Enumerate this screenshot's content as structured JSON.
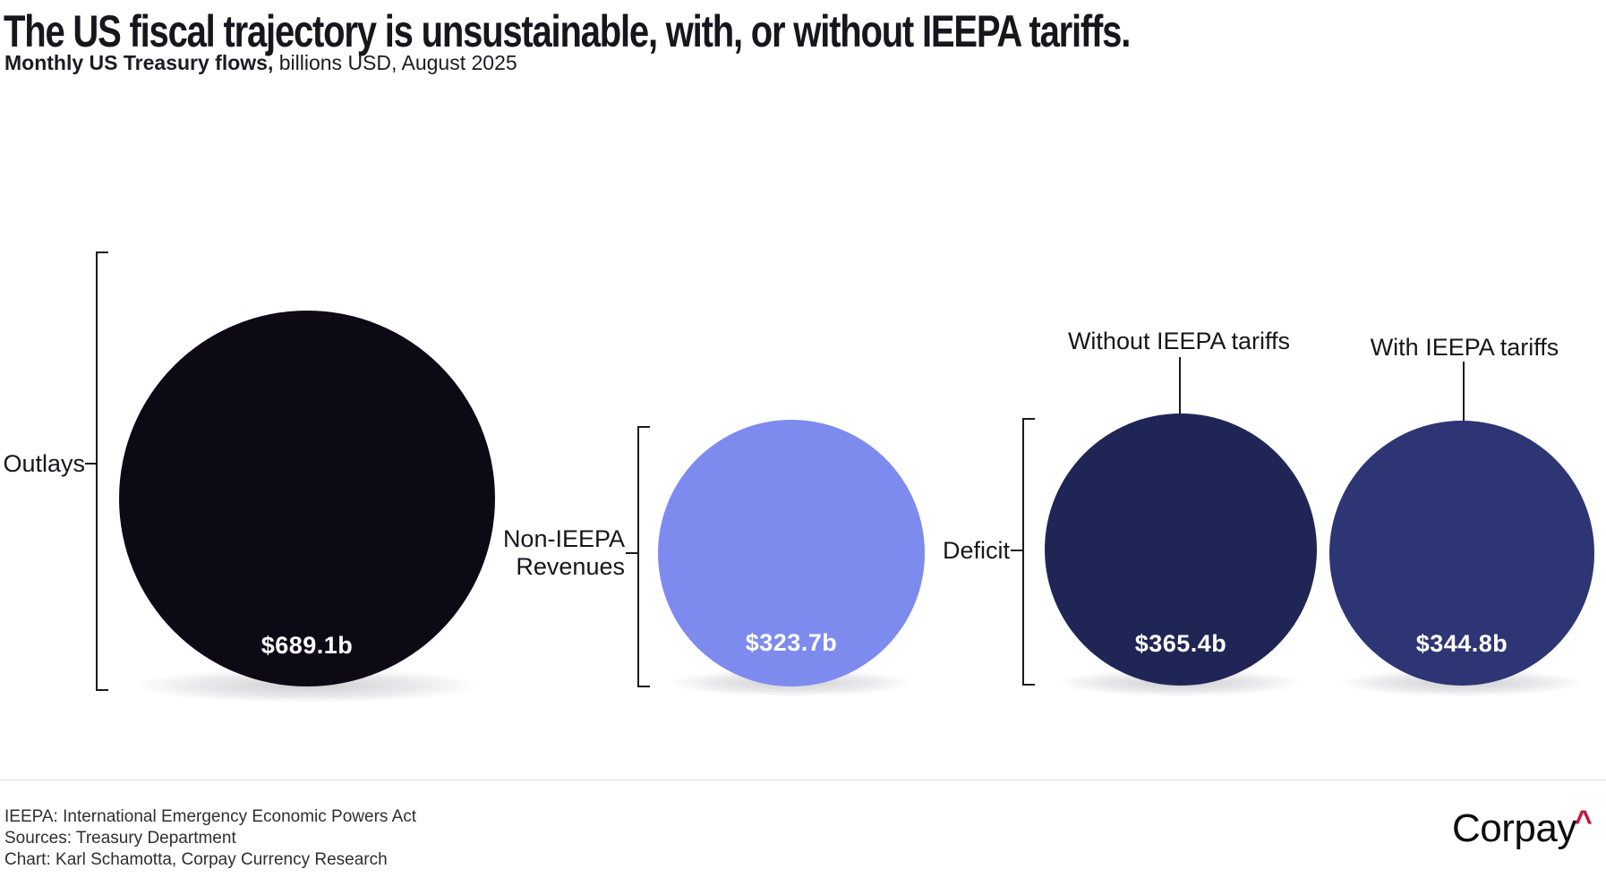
{
  "header": {
    "title": "The US fiscal trajectory is unsustainable, with, or without IEEPA tariffs.",
    "subtitle_bold": "Monthly US Treasury flows,",
    "subtitle_rest": " billions USD, August 2025"
  },
  "chart_data": {
    "type": "bubble",
    "title": "The US fiscal trajectory is unsustainable, with, or without IEEPA tariffs.",
    "subtitle": "Monthly US Treasury flows, billions USD, August 2025",
    "unit": "billions USD",
    "period": "August 2025",
    "area_proportional": true,
    "categories": [
      "Outlays",
      "Non-IEEPA Revenues",
      "Deficit without IEEPA tariffs",
      "Deficit with IEEPA tariffs"
    ],
    "values": [
      689.1,
      323.7,
      365.4,
      344.8
    ],
    "bubbles": [
      {
        "group": "Outlays",
        "label": "Outlays",
        "value": 689.1,
        "value_display": "$689.1b",
        "color": "#0d0a16"
      },
      {
        "group": "Non-IEEPA Revenues",
        "label": "Non-IEEPA Revenues",
        "value": 323.7,
        "value_display": "$323.7b",
        "color": "#7d8bef"
      },
      {
        "group": "Deficit",
        "label": "Without IEEPA tariffs",
        "value": 365.4,
        "value_display": "$365.4b",
        "color": "#1f2656"
      },
      {
        "group": "Deficit",
        "label": "With IEEPA tariffs",
        "value": 344.8,
        "value_display": "$344.8b",
        "color": "#2d3574"
      }
    ]
  },
  "labels": {
    "outlays": "Outlays",
    "revenues_line1": "Non-IEEPA",
    "revenues_line2": "Revenues",
    "deficit": "Deficit",
    "without_tariffs": "Without IEEPA tariffs",
    "with_tariffs": "With IEEPA tariffs"
  },
  "values": {
    "outlays": "$689.1b",
    "revenues": "$323.7b",
    "without_tariffs": "$365.4b",
    "with_tariffs": "$344.8b"
  },
  "footer": {
    "line1": "IEEPA: International Emergency Economic Powers Act",
    "line2": "Sources: Treasury Department",
    "line3": "Chart: Karl Schamotta, Corpay Currency Research",
    "logo_text": "Corpay",
    "logo_caret": "^"
  },
  "colors": {
    "outlays_circle": "#0d0a16",
    "revenues_circle": "#7d8bef",
    "deficit_without_circle": "#1f2656",
    "deficit_with_circle": "#2d3574",
    "line": "#1a1a1a",
    "logo_accent": "#c2163c",
    "divider": "#d9d9d9"
  }
}
